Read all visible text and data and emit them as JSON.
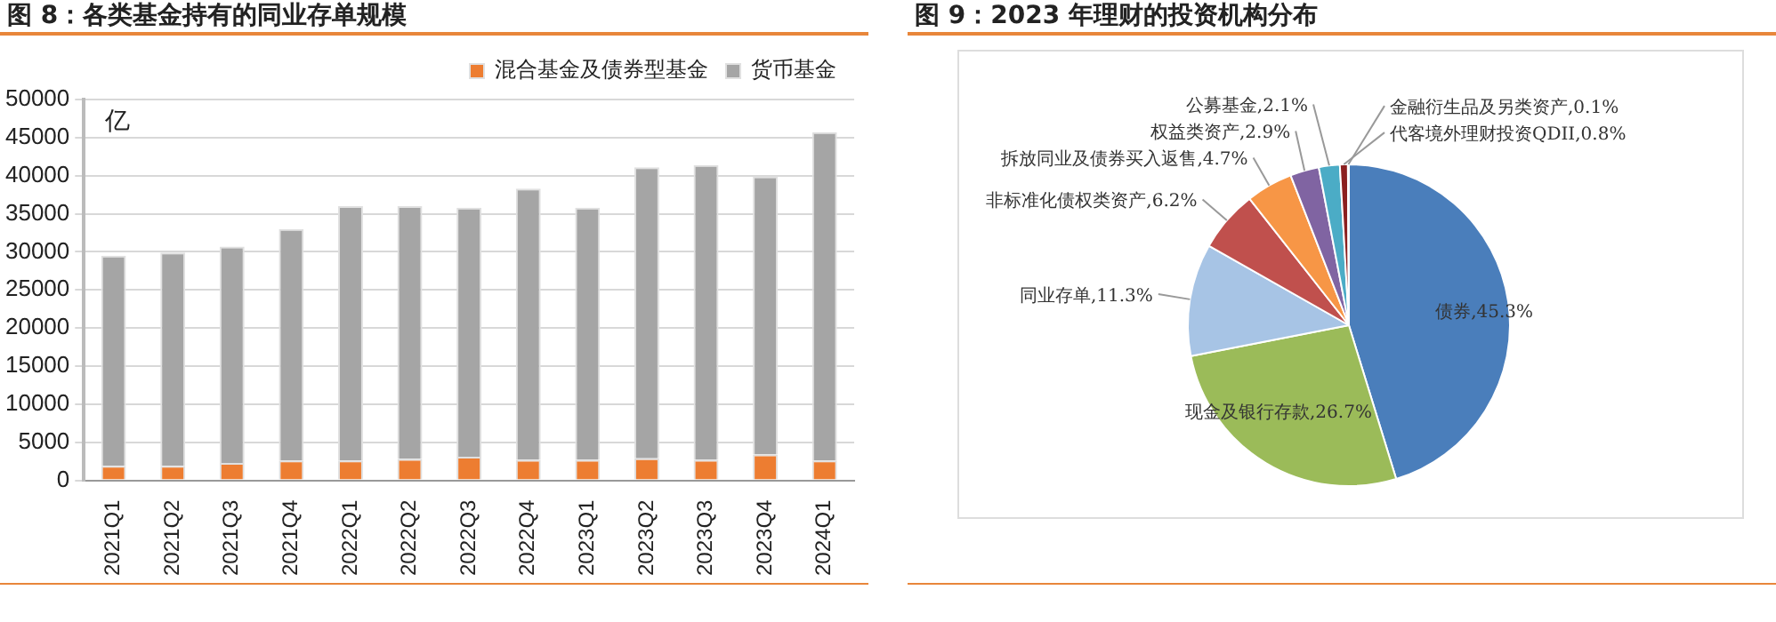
{
  "chart_data": [
    {
      "type": "bar",
      "title": "图 8：各类基金持有的同业存单规模",
      "ylabel": "亿",
      "categories": [
        "2021Q1",
        "2021Q2",
        "2021Q3",
        "2021Q4",
        "2022Q1",
        "2022Q2",
        "2022Q3",
        "2022Q4",
        "2023Q1",
        "2023Q2",
        "2023Q3",
        "2023Q4",
        "2024Q1"
      ],
      "series": [
        {
          "name": "混合基金及债券型基金",
          "color": "#ed7d31",
          "values": [
            1900,
            1900,
            2300,
            2600,
            2600,
            2800,
            3100,
            2700,
            2700,
            2900,
            2700,
            3400,
            2600
          ]
        },
        {
          "name": "货币基金",
          "color": "#a5a5a5",
          "values": [
            27600,
            28000,
            28400,
            30400,
            33400,
            33200,
            32700,
            35600,
            33100,
            38200,
            38700,
            36500,
            43100
          ]
        }
      ],
      "stacked": true,
      "ylim": [
        0,
        50000
      ],
      "yticks": [
        0,
        5000,
        10000,
        15000,
        20000,
        25000,
        30000,
        35000,
        40000,
        45000,
        50000
      ],
      "grid": "y",
      "legend": "top"
    },
    {
      "type": "pie",
      "title": "图 9：2023 年理财的投资机构分布",
      "categories": [
        "债券",
        "现金及银行存款",
        "同业存单",
        "非标准化债权类资产",
        "拆放同业及债券买入返售",
        "权益类资产",
        "公募基金",
        "代客境外理财投资QDII",
        "金融衍生品及另类资产"
      ],
      "values": [
        45.3,
        26.7,
        11.3,
        6.2,
        4.7,
        2.9,
        2.1,
        0.8,
        0.1
      ],
      "colors": [
        "#4a7ebb",
        "#9bbb59",
        "#a7c4e5",
        "#c0504d",
        "#f79646",
        "#8064a2",
        "#4bacc6",
        "#8b2020",
        "#1f497d"
      ],
      "value_labels": [
        "45.3%",
        "26.7%",
        "11.3%",
        "6.2%",
        "4.7%",
        "2.9%",
        "2.1%",
        "0.8%",
        "0.1%"
      ]
    }
  ]
}
